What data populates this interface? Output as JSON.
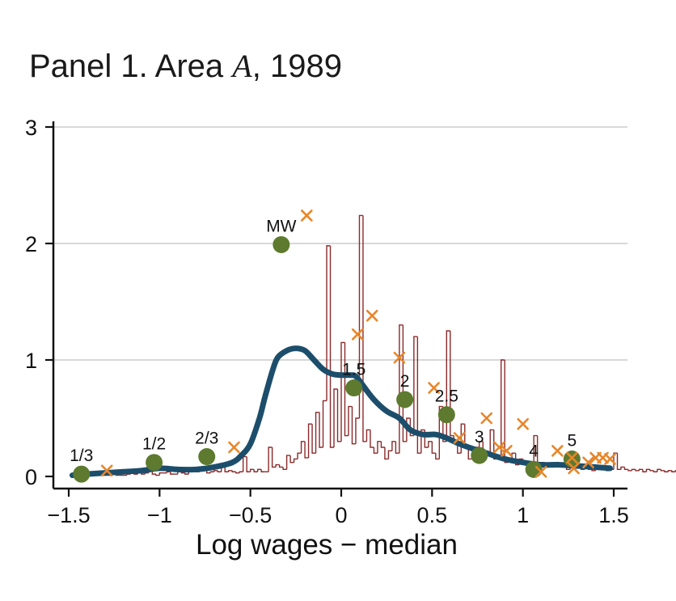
{
  "title": {
    "prefix": "Panel 1. Area ",
    "italic": "A",
    "suffix": ", 1989"
  },
  "chart_data": {
    "type": "line",
    "xlabel": "Log wages − median",
    "ylabel": "",
    "xlim": [
      -1.5,
      1.5
    ],
    "ylim": [
      0,
      3
    ],
    "grid": true,
    "x_ticks": [
      {
        "value": -1.5,
        "label": "−1.5"
      },
      {
        "value": -1,
        "label": "−1"
      },
      {
        "value": -0.5,
        "label": "−0.5"
      },
      {
        "value": 0,
        "label": "0"
      },
      {
        "value": 0.5,
        "label": "0.5"
      },
      {
        "value": 1,
        "label": "1"
      },
      {
        "value": 1.5,
        "label": "1.5"
      }
    ],
    "y_ticks": [
      {
        "value": 0,
        "label": "0"
      },
      {
        "value": 1,
        "label": "1"
      },
      {
        "value": 2,
        "label": "2"
      },
      {
        "value": 3,
        "label": "3"
      }
    ],
    "colors": {
      "histogram": "#8b2a2a",
      "density": "#1c4e6b",
      "markers": "#5d7a2e",
      "crosses": "#e8862a",
      "grid": "#cccccc",
      "axis": "#111111"
    },
    "density": {
      "x": [
        -1.48,
        -1.4,
        -1.3,
        -1.2,
        -1.1,
        -1.0,
        -0.9,
        -0.8,
        -0.7,
        -0.6,
        -0.55,
        -0.5,
        -0.45,
        -0.42,
        -0.38,
        -0.35,
        -0.3,
        -0.25,
        -0.2,
        -0.15,
        -0.1,
        -0.05,
        0.0,
        0.05,
        0.08,
        0.12,
        0.18,
        0.25,
        0.32,
        0.38,
        0.45,
        0.52,
        0.58,
        0.65,
        0.72,
        0.8,
        0.9,
        1.0,
        1.1,
        1.2,
        1.3,
        1.4,
        1.48
      ],
      "y": [
        0.01,
        0.02,
        0.03,
        0.04,
        0.05,
        0.07,
        0.06,
        0.06,
        0.08,
        0.12,
        0.18,
        0.28,
        0.5,
        0.68,
        0.9,
        1.02,
        1.08,
        1.1,
        1.08,
        1.0,
        0.92,
        0.88,
        0.87,
        0.87,
        0.86,
        0.78,
        0.66,
        0.56,
        0.5,
        0.4,
        0.36,
        0.36,
        0.33,
        0.28,
        0.24,
        0.2,
        0.15,
        0.12,
        0.1,
        0.1,
        0.09,
        0.08,
        0.07
      ]
    },
    "histogram": {
      "x_start": -1.46,
      "bin_width": 0.02,
      "heights": [
        0.01,
        0.01,
        0.03,
        0.01,
        0.01,
        0.02,
        0.04,
        0.02,
        0.01,
        0.01,
        0.02,
        0.01,
        0.01,
        0.01,
        0.02,
        0.04,
        0.02,
        0.03,
        0.02,
        0.03,
        0.1,
        0.02,
        0.01,
        0.03,
        0.03,
        0.04,
        0.02,
        0.02,
        0.04,
        0.03,
        0.02,
        0.04,
        0.05,
        0.04,
        0.05,
        0.05,
        0.03,
        0.04,
        0.05,
        0.04,
        0.11,
        0.04,
        0.05,
        0.04,
        0.03,
        0.04,
        0.17,
        0.04,
        0.06,
        0.04,
        0.06,
        0.04,
        0.04,
        0.25,
        0.08,
        0.1,
        0.08,
        0.06,
        0.18,
        0.12,
        0.15,
        0.2,
        0.3,
        0.16,
        0.45,
        0.2,
        0.55,
        0.25,
        0.65,
        1.98,
        0.25,
        0.75,
        0.3,
        1.15,
        0.35,
        0.6,
        0.28,
        0.5,
        2.24,
        0.3,
        0.4,
        0.25,
        0.2,
        0.3,
        0.25,
        0.15,
        0.22,
        0.3,
        0.2,
        1.3,
        0.3,
        0.5,
        0.35,
        1.2,
        0.2,
        0.4,
        0.25,
        0.3,
        0.2,
        0.15,
        0.6,
        0.3,
        1.25,
        0.35,
        0.3,
        0.2,
        0.45,
        0.25,
        0.15,
        0.2,
        0.25,
        0.3,
        0.15,
        0.2,
        0.4,
        0.15,
        0.15,
        1.0,
        0.12,
        0.15,
        0.2,
        0.1,
        0.15,
        0.12,
        0.1,
        0.12,
        0.35,
        0.1,
        0.12,
        0.08,
        0.1,
        0.08,
        0.12,
        0.1,
        0.08,
        0.06,
        0.1,
        0.12,
        0.08,
        0.06,
        0.08,
        0.06,
        0.05,
        0.08,
        0.07,
        0.06,
        0.05,
        0.06,
        0.2,
        0.06,
        0.08,
        0.06,
        0.05,
        0.06,
        0.05,
        0.06,
        0.04,
        0.06,
        0.05,
        0.04,
        0.06,
        0.05,
        0.04,
        0.05,
        0.04,
        0.05,
        0.04,
        0.04,
        0.03,
        0.04,
        0.05,
        0.04,
        0.03,
        0.04,
        0.03
      ]
    },
    "markers": [
      {
        "x": -1.43,
        "y": 0.02,
        "label": "1/3"
      },
      {
        "x": -1.03,
        "y": 0.12,
        "label": "1/2"
      },
      {
        "x": -0.74,
        "y": 0.17,
        "label": "2/3"
      },
      {
        "x": -0.33,
        "y": 1.99,
        "label": "MW"
      },
      {
        "x": 0.07,
        "y": 0.76,
        "label": "1.5"
      },
      {
        "x": 0.35,
        "y": 0.66,
        "label": "2"
      },
      {
        "x": 0.58,
        "y": 0.53,
        "label": "2.5"
      },
      {
        "x": 0.76,
        "y": 0.18,
        "label": "3"
      },
      {
        "x": 1.06,
        "y": 0.06,
        "label": "4"
      },
      {
        "x": 1.27,
        "y": 0.15,
        "label": "5"
      }
    ],
    "crosses": [
      {
        "x": -1.29,
        "y": 0.05
      },
      {
        "x": -0.59,
        "y": 0.25
      },
      {
        "x": -0.19,
        "y": 2.24
      },
      {
        "x": 0.09,
        "y": 1.22
      },
      {
        "x": 0.17,
        "y": 1.38
      },
      {
        "x": 0.32,
        "y": 1.02
      },
      {
        "x": 0.51,
        "y": 0.76
      },
      {
        "x": 0.65,
        "y": 0.33
      },
      {
        "x": 0.8,
        "y": 0.5
      },
      {
        "x": 0.87,
        "y": 0.25
      },
      {
        "x": 0.91,
        "y": 0.22
      },
      {
        "x": 1.0,
        "y": 0.45
      },
      {
        "x": 1.1,
        "y": 0.04
      },
      {
        "x": 1.19,
        "y": 0.22
      },
      {
        "x": 1.27,
        "y": 0.16
      },
      {
        "x": 1.28,
        "y": 0.07
      },
      {
        "x": 1.36,
        "y": 0.12
      },
      {
        "x": 1.4,
        "y": 0.16
      },
      {
        "x": 1.44,
        "y": 0.16
      },
      {
        "x": 1.48,
        "y": 0.15
      }
    ]
  }
}
